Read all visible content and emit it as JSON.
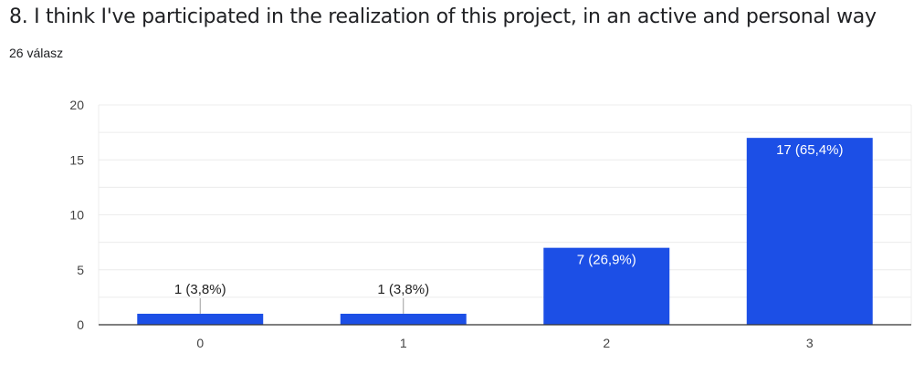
{
  "question": {
    "title": "8. I think I've participated in the realization of this project, in an active and personal way",
    "response_count": "26 válasz"
  },
  "colors": {
    "bar": "#1c4fe6",
    "gridline": "#ececec",
    "axis": "#333333",
    "label_outside": "#222222",
    "label_inside": "#ffffff"
  },
  "chart_data": {
    "type": "bar",
    "title": "",
    "xlabel": "",
    "ylabel": "",
    "categories": [
      "0",
      "1",
      "2",
      "3"
    ],
    "values": [
      1,
      1,
      7,
      17
    ],
    "data_labels": [
      "1 (3,8%)",
      "1 (3,8%)",
      "7 (26,9%)",
      "17 (65,4%)"
    ],
    "ylim": [
      0,
      20
    ],
    "yticks": [
      0,
      5,
      10,
      15,
      20
    ],
    "ytick_labels": [
      "0",
      "5",
      "10",
      "15",
      "20"
    ],
    "grid": true,
    "legend": "none"
  }
}
